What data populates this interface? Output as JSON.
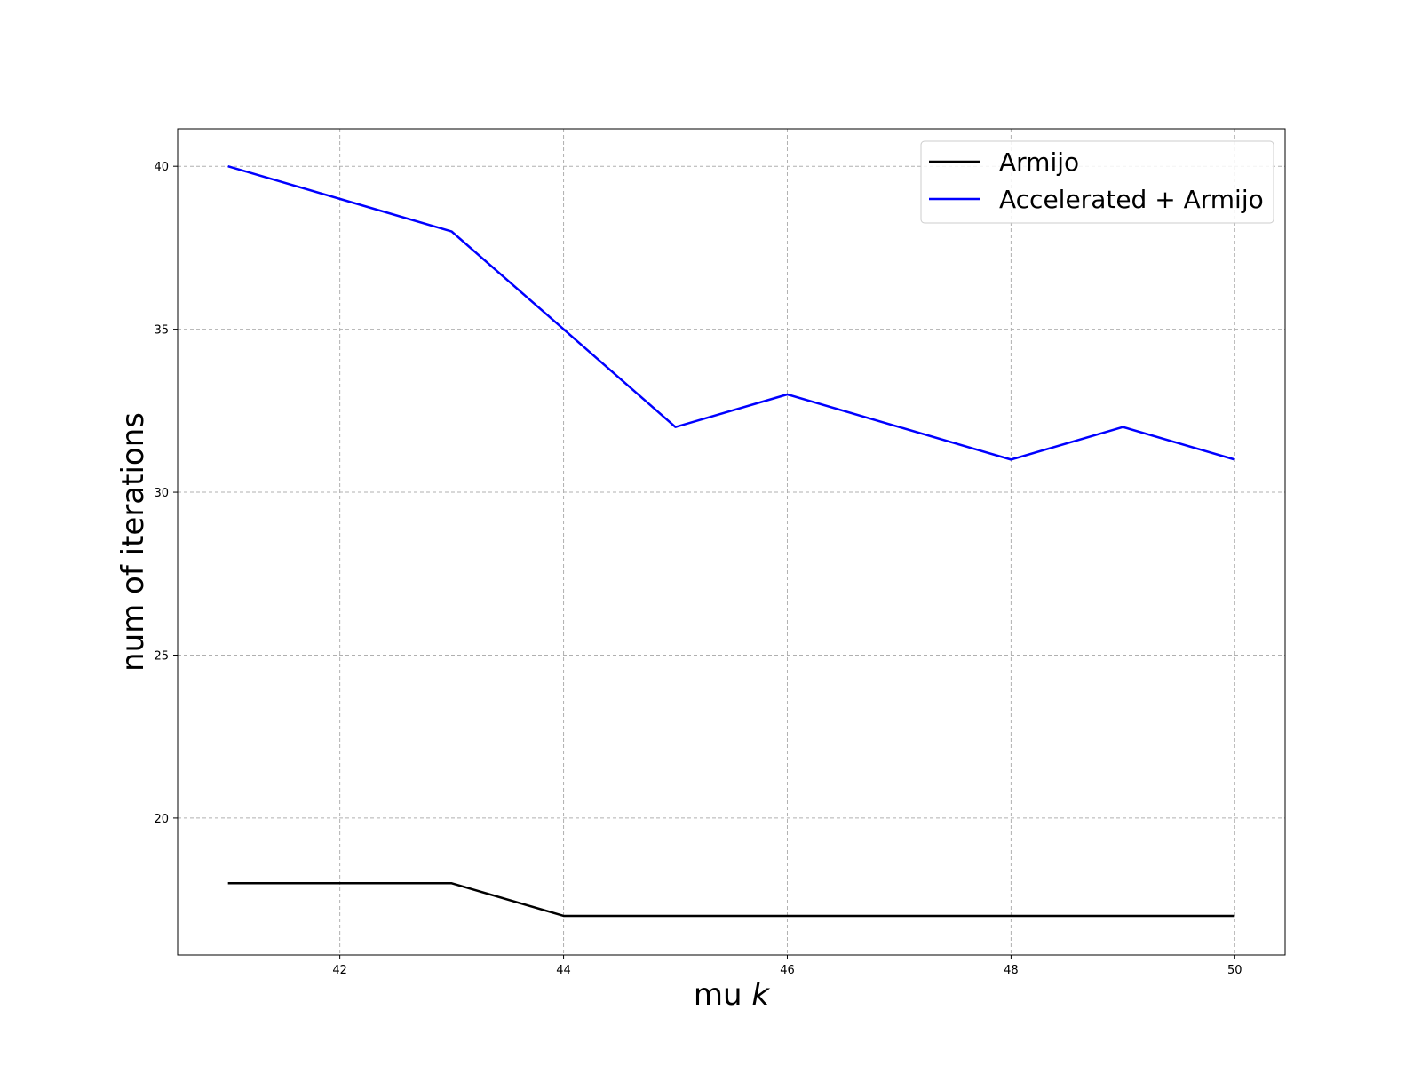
{
  "chart_data": {
    "type": "line",
    "title": "",
    "xlabel": "mu",
    "xlabel_var": "k",
    "ylabel": "num of iterations",
    "x": [
      41,
      42,
      43,
      44,
      45,
      46,
      47,
      48,
      49,
      50
    ],
    "xlim": [
      40.55,
      50.45
    ],
    "ylim": [
      15.8,
      41.15
    ],
    "xticks": [
      42,
      44,
      46,
      48,
      50
    ],
    "yticks": [
      20,
      25,
      30,
      35,
      40
    ],
    "grid": true,
    "legend_position": "top-right",
    "series": [
      {
        "name": "Armijo",
        "color": "#000000",
        "values": [
          18,
          18,
          18,
          17,
          17,
          17,
          17,
          17,
          17,
          17
        ]
      },
      {
        "name": "Accelerated + Armijo",
        "color": "#0000ff",
        "values": [
          40,
          39,
          38,
          35,
          32,
          33,
          32,
          31,
          32,
          31
        ]
      }
    ]
  }
}
